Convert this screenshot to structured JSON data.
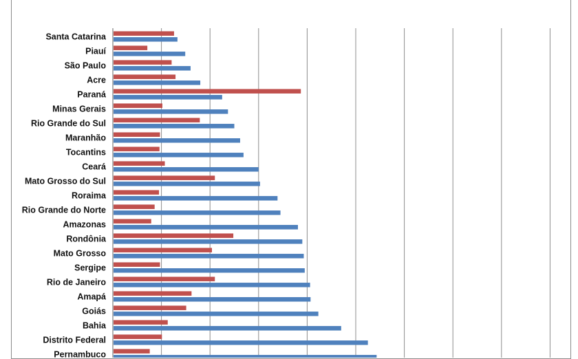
{
  "chart_data": {
    "type": "bar",
    "orientation": "horizontal",
    "title": "",
    "xlabel": "",
    "ylabel": "",
    "xlim": [
      0,
      9
    ],
    "grid": true,
    "legend": "none",
    "categories": [
      "Santa Catarina",
      "Piauí",
      "São Paulo",
      "Acre",
      "Paraná",
      "Minas Gerais",
      "Rio Grande do Sul",
      "Maranhão",
      "Tocantins",
      "Ceará",
      "Mato Grosso do Sul",
      "Roraima",
      "Rio Grande do Norte",
      "Amazonas",
      "Rondônia",
      "Mato Grosso",
      "Sergipe",
      "Rio de Janeiro",
      "Amapá",
      "Goiás",
      "Bahia",
      "Distrito Federal",
      "Pernambuco"
    ],
    "series": [
      {
        "color": "#c0504d",
        "values": [
          1.26,
          0.71,
          1.21,
          1.29,
          3.87,
          1.02,
          1.79,
          0.97,
          0.96,
          1.07,
          2.1,
          0.95,
          0.86,
          0.79,
          2.48,
          2.04,
          0.97,
          2.1,
          1.62,
          1.51,
          1.13,
          1.01,
          0.76
        ]
      },
      {
        "color": "#4f81bd",
        "values": [
          1.33,
          1.49,
          1.6,
          1.8,
          2.25,
          2.37,
          2.5,
          2.62,
          2.69,
          3.0,
          3.03,
          3.39,
          3.45,
          3.81,
          3.9,
          3.93,
          3.95,
          4.06,
          4.07,
          4.23,
          4.7,
          5.25,
          5.43
        ]
      }
    ]
  }
}
